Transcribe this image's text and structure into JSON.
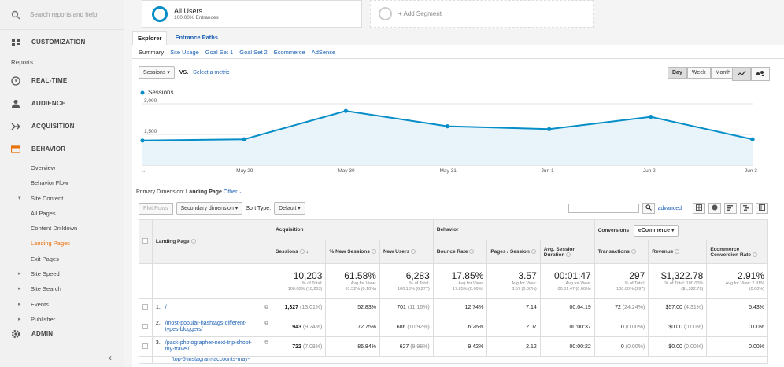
{
  "sidebar": {
    "search_placeholder": "Search reports and help",
    "customization": "CUSTOMIZATION",
    "reports_heading": "Reports",
    "realtime": "REAL-TIME",
    "audience": "AUDIENCE",
    "acquisition": "ACQUISITION",
    "behavior": "BEHAVIOR",
    "overview": "Overview",
    "behavior_flow": "Behavior Flow",
    "site_content": "Site Content",
    "all_pages": "All Pages",
    "content_drilldown": "Content Drilldown",
    "landing_pages": "Landing Pages",
    "exit_pages": "Exit Pages",
    "site_speed": "Site Speed",
    "site_search": "Site Search",
    "events": "Events",
    "publisher": "Publisher",
    "admin": "ADMIN",
    "collapse_icon": "‹"
  },
  "segments": {
    "all_users": "All Users",
    "all_users_sub": "100.00% Entrances",
    "add_segment": "+ Add Segment"
  },
  "tabs": {
    "explorer": "Explorer",
    "entrance_paths": "Entrance Paths"
  },
  "subtabs": [
    "Summary",
    "Site Usage",
    "Goal Set 1",
    "Goal Set 2",
    "Ecommerce",
    "AdSense"
  ],
  "controls": {
    "metric": "Sessions",
    "vs": "VS.",
    "select_metric": "Select a metric",
    "day": "Day",
    "week": "Week",
    "month": "Month"
  },
  "chart_data": {
    "type": "line",
    "series": [
      {
        "name": "Sessions",
        "values": [
          1200,
          1260,
          2650,
          1900,
          1760,
          2360,
          1260
        ]
      }
    ],
    "y_ticks": [
      "3,000",
      "1,500"
    ],
    "x_labels": [
      "...",
      "May 29",
      "May 30",
      "May 31",
      "Jun 1",
      "Jun 2",
      "Jun 3"
    ],
    "ylim": [
      0,
      3000
    ],
    "color": "#058dc7"
  },
  "dimension": {
    "label": "Primary Dimension:",
    "value": "Landing Page",
    "other": "Other ⌄"
  },
  "tools": {
    "plot_rows": "Plot Rows",
    "secondary_dimension": "Secondary dimension",
    "sort_type_label": "Sort Type:",
    "sort_type": "Default",
    "advanced": "advanced"
  },
  "table": {
    "groups": {
      "acquisition": "Acquisition",
      "behavior": "Behavior",
      "conversions": "Conversions",
      "conv_select": "eCommerce"
    },
    "first_col": "Landing Page",
    "headers": [
      "Sessions",
      "% New Sessions",
      "New Users",
      "Bounce Rate",
      "Pages / Session",
      "Avg. Session Duration",
      "Transactions",
      "Revenue",
      "Ecommerce Conversion Rate"
    ],
    "totals": [
      {
        "big": "10,203",
        "s1": "% of Total:",
        "s2": "100.00% (10,203)"
      },
      {
        "big": "61.58%",
        "s1": "Avg for View:",
        "s2": "61.52% (0.10%)"
      },
      {
        "big": "6,283",
        "s1": "% of Total:",
        "s2": "100.10% (6,277)"
      },
      {
        "big": "17.85%",
        "s1": "Avg for View:",
        "s2": "17.85% (0.00%)"
      },
      {
        "big": "3.57",
        "s1": "Avg for View:",
        "s2": "3.57 (0.00%)"
      },
      {
        "big": "00:01:47",
        "s1": "Avg for View:",
        "s2": "00:01:47 (0.00%)"
      },
      {
        "big": "297",
        "s1": "% of Total:",
        "s2": "100.00% (297)"
      },
      {
        "big": "$1,322.78",
        "s1": "% of Total: 100.00%",
        "s2": "($1,322.78)"
      },
      {
        "big": "2.91%",
        "s1": "Avg for View: 2.91%",
        "s2": "(0.00%)"
      }
    ],
    "rows": [
      {
        "n": "1.",
        "page": "/",
        "sessions": "1,327",
        "sess_pct": "(13.01%)",
        "new_sess": "52.83%",
        "new_users": "701",
        "nu_pct": "(11.16%)",
        "bounce": "12.74%",
        "pps": "7.14",
        "dur": "00:04:19",
        "trans": "72",
        "t_pct": "(24.24%)",
        "rev": "$57.00",
        "r_pct": "(4.31%)",
        "conv": "5.43%"
      },
      {
        "n": "2.",
        "page": "/most-popular-hashtags-different-types-bloggers/",
        "sessions": "943",
        "sess_pct": "(9.24%)",
        "new_sess": "72.75%",
        "new_users": "686",
        "nu_pct": "(10.92%)",
        "bounce": "6.26%",
        "pps": "2.07",
        "dur": "00:00:37",
        "trans": "0",
        "t_pct": "(0.00%)",
        "rev": "$0.00",
        "r_pct": "(0.00%)",
        "conv": "0.00%"
      },
      {
        "n": "3.",
        "page": "/pack-photographer-next-trip-shoot-my-travel/",
        "sessions": "722",
        "sess_pct": "(7.08%)",
        "new_sess": "86.84%",
        "new_users": "627",
        "nu_pct": "(9.98%)",
        "bounce": "9.42%",
        "pps": "2.12",
        "dur": "00:00:22",
        "trans": "0",
        "t_pct": "(0.00%)",
        "rev": "$0.00",
        "r_pct": "(0.00%)",
        "conv": "0.00%"
      }
    ],
    "partial_row": "/top-5-instagram-accounts-may-"
  }
}
